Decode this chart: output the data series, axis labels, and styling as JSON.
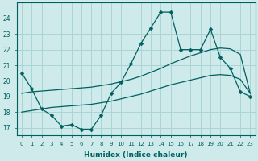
{
  "xlabel": "Humidex (Indice chaleur)",
  "x": [
    0,
    1,
    2,
    3,
    4,
    5,
    6,
    7,
    8,
    9,
    10,
    11,
    12,
    13,
    14,
    15,
    16,
    17,
    18,
    19,
    20,
    21,
    22,
    23
  ],
  "line_main": [
    20.5,
    19.5,
    18.2,
    17.8,
    17.1,
    17.2,
    16.9,
    16.9,
    17.8,
    19.2,
    19.9,
    21.1,
    22.4,
    23.4,
    24.4,
    24.4,
    22.0,
    22.0,
    22.0,
    23.3,
    21.5,
    20.8,
    19.3,
    19.0
  ],
  "line_trend1": [
    19.2,
    19.3,
    19.35,
    19.4,
    19.45,
    19.5,
    19.55,
    19.6,
    19.7,
    19.8,
    19.95,
    20.1,
    20.3,
    20.55,
    20.8,
    21.1,
    21.35,
    21.6,
    21.8,
    22.0,
    22.1,
    22.05,
    21.7,
    19.2
  ],
  "line_trend2": [
    18.0,
    18.1,
    18.2,
    18.3,
    18.35,
    18.4,
    18.45,
    18.5,
    18.6,
    18.7,
    18.85,
    19.0,
    19.15,
    19.35,
    19.55,
    19.75,
    19.9,
    20.05,
    20.2,
    20.35,
    20.4,
    20.35,
    20.1,
    19.2
  ],
  "bg_color": "#ceeaea",
  "grid_color": "#aad4d4",
  "line_color": "#006060",
  "ylim": [
    16.5,
    25.0
  ],
  "yticks": [
    17,
    18,
    19,
    20,
    21,
    22,
    23,
    24
  ],
  "xticks": [
    0,
    1,
    2,
    3,
    4,
    5,
    6,
    7,
    8,
    9,
    10,
    11,
    12,
    13,
    14,
    15,
    16,
    17,
    18,
    19,
    20,
    21,
    22,
    23
  ],
  "marker": "D",
  "marker_size": 2.5
}
